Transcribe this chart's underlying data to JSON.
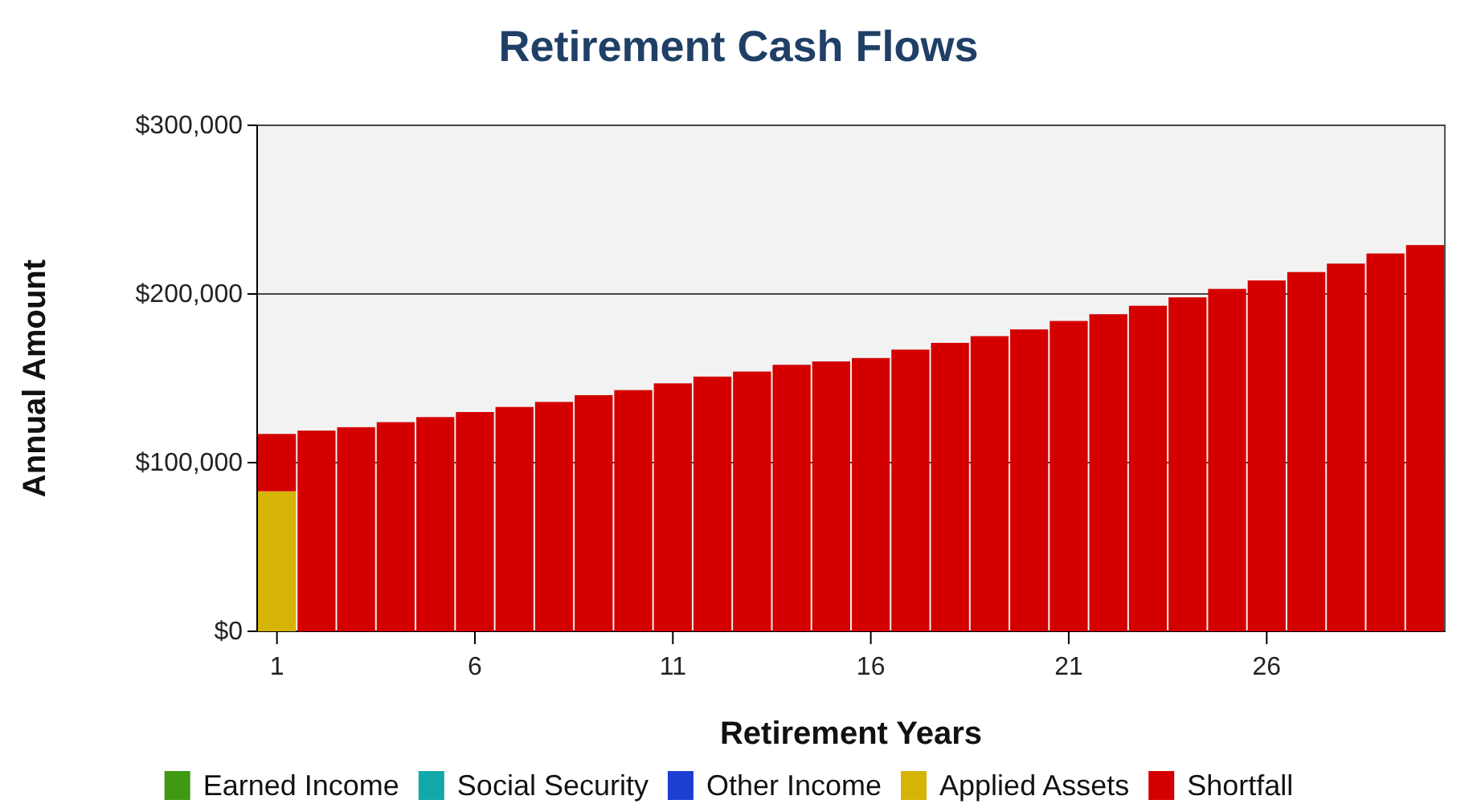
{
  "chart_data": {
    "type": "bar",
    "title": "Retirement Cash Flows",
    "xlabel": "Retirement Years",
    "ylabel": "Annual Amount",
    "categories": [
      "1",
      null,
      null,
      null,
      null,
      "6",
      null,
      null,
      null,
      null,
      "11",
      null,
      null,
      null,
      null,
      "16",
      null,
      null,
      null,
      null,
      "21",
      null,
      null,
      null,
      null,
      "26",
      null,
      null,
      null,
      null
    ],
    "stacked": true,
    "ylim": [
      0,
      300000
    ],
    "yticks": [
      {
        "value": 0,
        "label": "$0"
      },
      {
        "value": 100000,
        "label": "$100,000"
      },
      {
        "value": 200000,
        "label": "$200,000"
      },
      {
        "value": 300000,
        "label": "$300,000"
      }
    ],
    "grid": "y",
    "legend": "bottom",
    "series": [
      {
        "name": "Earned Income",
        "color": "#3f9a12",
        "values": [
          0,
          0,
          0,
          0,
          0,
          0,
          0,
          0,
          0,
          0,
          0,
          0,
          0,
          0,
          0,
          0,
          0,
          0,
          0,
          0,
          0,
          0,
          0,
          0,
          0,
          0,
          0,
          0,
          0,
          0
        ]
      },
      {
        "name": "Social Security",
        "color": "#12a8a8",
        "values": [
          0,
          0,
          0,
          0,
          0,
          0,
          0,
          0,
          0,
          0,
          0,
          0,
          0,
          0,
          0,
          0,
          0,
          0,
          0,
          0,
          0,
          0,
          0,
          0,
          0,
          0,
          0,
          0,
          0,
          0
        ]
      },
      {
        "name": "Other Income",
        "color": "#1c3fd2",
        "values": [
          0,
          0,
          0,
          0,
          0,
          0,
          0,
          0,
          0,
          0,
          0,
          0,
          0,
          0,
          0,
          0,
          0,
          0,
          0,
          0,
          0,
          0,
          0,
          0,
          0,
          0,
          0,
          0,
          0,
          0
        ]
      },
      {
        "name": "Applied Assets",
        "color": "#d6b406",
        "values": [
          83000,
          0,
          0,
          0,
          0,
          0,
          0,
          0,
          0,
          0,
          0,
          0,
          0,
          0,
          0,
          0,
          0,
          0,
          0,
          0,
          0,
          0,
          0,
          0,
          0,
          0,
          0,
          0,
          0,
          0
        ]
      },
      {
        "name": "Shortfall",
        "color": "#d40000",
        "values": [
          34000,
          119000,
          121000,
          124000,
          127000,
          130000,
          133000,
          136000,
          140000,
          143000,
          147000,
          151000,
          154000,
          158000,
          160000,
          162000,
          167000,
          171000,
          175000,
          179000,
          184000,
          188000,
          193000,
          198000,
          203000,
          208000,
          213000,
          218000,
          224000,
          229000
        ]
      }
    ]
  }
}
